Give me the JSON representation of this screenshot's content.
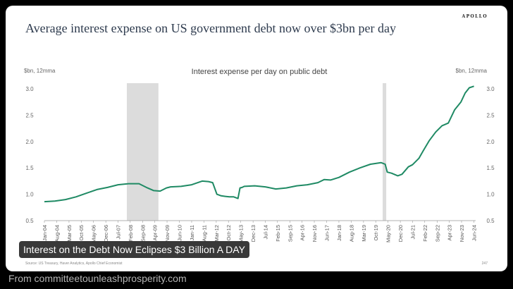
{
  "slide": {
    "brand": "APOLLO",
    "title": "Average interest expense on US government debt now over $3bn per day",
    "source": "Source: US Treasury, Haver Analytics, Apollo Chief Economist",
    "page_number": "247"
  },
  "caption": "Interest on the Debt Now Eclipses $3 Billion A DAY",
  "attribution": "From committeetounleashprosperity.com",
  "colors": {
    "line": "#1f8a64",
    "recession": "#dcdcdc",
    "title": "#2e3b4e"
  },
  "chart_data": {
    "type": "line",
    "title": "Interest expense per day on public debt",
    "ylabel_left": "$bn, 12mma",
    "ylabel_right": "$bn, 12mma",
    "ylim": [
      0.5,
      3.0
    ],
    "yticks": [
      "0.5",
      "1.0",
      "1.5",
      "2.0",
      "2.5",
      "3.0"
    ],
    "xlim": [
      2004.0,
      2024.5
    ],
    "xticks": [
      {
        "label": "Jan-04",
        "x": 2004.0
      },
      {
        "label": "Aug-04",
        "x": 2004.58
      },
      {
        "label": "Mar-05",
        "x": 2005.17
      },
      {
        "label": "Oct-05",
        "x": 2005.75
      },
      {
        "label": "May-06",
        "x": 2006.33
      },
      {
        "label": "Dec-06",
        "x": 2006.92
      },
      {
        "label": "Jul-07",
        "x": 2007.5
      },
      {
        "label": "Feb-08",
        "x": 2008.08
      },
      {
        "label": "Sep-08",
        "x": 2008.67
      },
      {
        "label": "Apr-09",
        "x": 2009.25
      },
      {
        "label": "Nov-09",
        "x": 2009.83
      },
      {
        "label": "Jun-10",
        "x": 2010.42
      },
      {
        "label": "Jan-11",
        "x": 2011.0
      },
      {
        "label": "Aug-11",
        "x": 2011.58
      },
      {
        "label": "Mar-12",
        "x": 2012.17
      },
      {
        "label": "Oct-12",
        "x": 2012.75
      },
      {
        "label": "May-13",
        "x": 2013.33
      },
      {
        "label": "Dec-13",
        "x": 2013.92
      },
      {
        "label": "Jul-14",
        "x": 2014.5
      },
      {
        "label": "Feb-15",
        "x": 2015.08
      },
      {
        "label": "Sep-15",
        "x": 2015.67
      },
      {
        "label": "Apr-16",
        "x": 2016.25
      },
      {
        "label": "Nov-16",
        "x": 2016.83
      },
      {
        "label": "Jun-17",
        "x": 2017.42
      },
      {
        "label": "Jan-18",
        "x": 2018.0
      },
      {
        "label": "Aug-18",
        "x": 2018.58
      },
      {
        "label": "Mar-19",
        "x": 2019.17
      },
      {
        "label": "Oct-19",
        "x": 2019.75
      },
      {
        "label": "May-20",
        "x": 2020.33
      },
      {
        "label": "Dec-20",
        "x": 2020.92
      },
      {
        "label": "Jul-21",
        "x": 2021.5
      },
      {
        "label": "Feb-22",
        "x": 2022.08
      },
      {
        "label": "Sep-22",
        "x": 2022.67
      },
      {
        "label": "Apr-23",
        "x": 2023.25
      },
      {
        "label": "Nov-23",
        "x": 2023.83
      },
      {
        "label": "Jun-24",
        "x": 2024.42
      }
    ],
    "recessions": [
      [
        2007.92,
        2009.42
      ],
      [
        2020.08,
        2020.25
      ]
    ],
    "series": [
      {
        "x": [
          2004.0,
          2004.5,
          2005.0,
          2005.5,
          2006.0,
          2006.5,
          2007.0,
          2007.5,
          2008.0,
          2008.5,
          2008.9,
          2009.2,
          2009.5,
          2009.8,
          2010.0,
          2010.5,
          2011.0,
          2011.5,
          2011.8,
          2012.0,
          2012.2,
          2012.4,
          2012.6,
          2012.8,
          2013.0,
          2013.2,
          2013.3,
          2013.4,
          2013.5,
          2014.0,
          2014.5,
          2015.0,
          2015.5,
          2016.0,
          2016.5,
          2017.0,
          2017.3,
          2017.6,
          2018.0,
          2018.5,
          2019.0,
          2019.5,
          2020.0,
          2020.2,
          2020.3,
          2020.5,
          2020.8,
          2021.0,
          2021.3,
          2021.5,
          2021.8,
          2022.0,
          2022.3,
          2022.6,
          2022.9,
          2023.2,
          2023.5,
          2023.8,
          2024.0,
          2024.2,
          2024.42
        ],
        "values": [
          0.86,
          0.87,
          0.9,
          0.95,
          1.02,
          1.09,
          1.13,
          1.18,
          1.2,
          1.2,
          1.12,
          1.07,
          1.06,
          1.12,
          1.14,
          1.15,
          1.18,
          1.25,
          1.24,
          1.22,
          1.0,
          0.97,
          0.96,
          0.95,
          0.95,
          0.92,
          1.12,
          1.13,
          1.15,
          1.16,
          1.14,
          1.1,
          1.12,
          1.16,
          1.18,
          1.22,
          1.28,
          1.27,
          1.32,
          1.42,
          1.5,
          1.57,
          1.6,
          1.57,
          1.42,
          1.4,
          1.35,
          1.38,
          1.52,
          1.56,
          1.68,
          1.82,
          2.02,
          2.18,
          2.3,
          2.35,
          2.6,
          2.75,
          2.92,
          3.02,
          3.05
        ]
      }
    ]
  }
}
